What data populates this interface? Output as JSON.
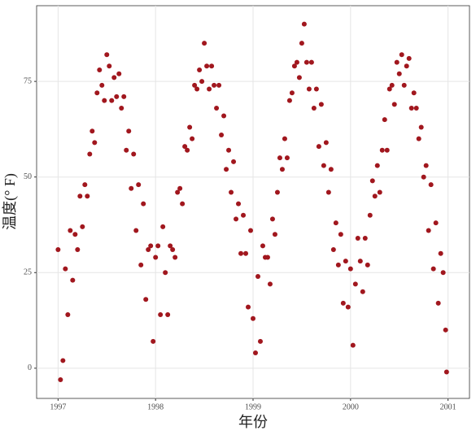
{
  "chart_data": {
    "type": "scatter",
    "x_label": "年份",
    "y_label": "温度(° F)",
    "color": "#a1171e",
    "grid": true,
    "xlim": [
      1996.78,
      2001.22
    ],
    "ylim": [
      -7.9,
      94.8
    ],
    "xticks": [
      1997,
      1998,
      1999,
      2000,
      2001
    ],
    "yticks": [
      0,
      25,
      50,
      75
    ],
    "x": [
      1997.0,
      1997.025,
      1997.05,
      1997.075,
      1997.1,
      1997.125,
      1997.15,
      1997.175,
      1997.2,
      1997.225,
      1997.25,
      1997.275,
      1997.3,
      1997.325,
      1997.35,
      1997.375,
      1997.4,
      1997.425,
      1997.45,
      1997.475,
      1997.5,
      1997.525,
      1997.55,
      1997.575,
      1997.6,
      1997.625,
      1997.65,
      1997.675,
      1997.7,
      1997.725,
      1997.75,
      1997.775,
      1997.8,
      1997.825,
      1997.85,
      1997.875,
      1997.9,
      1997.925,
      1997.95,
      1997.975,
      1998.0,
      1998.025,
      1998.05,
      1998.075,
      1998.1,
      1998.125,
      1998.15,
      1998.175,
      1998.2,
      1998.225,
      1998.25,
      1998.275,
      1998.3,
      1998.325,
      1998.35,
      1998.375,
      1998.4,
      1998.425,
      1998.45,
      1998.475,
      1998.5,
      1998.525,
      1998.55,
      1998.575,
      1998.6,
      1998.625,
      1998.65,
      1998.675,
      1998.7,
      1998.725,
      1998.75,
      1998.775,
      1998.8,
      1998.825,
      1998.85,
      1998.875,
      1998.9,
      1998.925,
      1998.95,
      1998.975,
      1999.0,
      1999.025,
      1999.05,
      1999.075,
      1999.1,
      1999.125,
      1999.15,
      1999.175,
      1999.2,
      1999.225,
      1999.25,
      1999.275,
      1999.3,
      1999.325,
      1999.35,
      1999.375,
      1999.4,
      1999.425,
      1999.45,
      1999.475,
      1999.5,
      1999.525,
      1999.55,
      1999.575,
      1999.6,
      1999.625,
      1999.65,
      1999.675,
      1999.7,
      1999.725,
      1999.75,
      1999.775,
      1999.8,
      1999.825,
      1999.85,
      1999.875,
      1999.9,
      1999.925,
      1999.95,
      1999.975,
      2000.0,
      2000.025,
      2000.05,
      2000.075,
      2000.1,
      2000.125,
      2000.15,
      2000.175,
      2000.2,
      2000.225,
      2000.25,
      2000.275,
      2000.3,
      2000.325,
      2000.35,
      2000.375,
      2000.4,
      2000.425,
      2000.45,
      2000.475,
      2000.5,
      2000.525,
      2000.55,
      2000.575,
      2000.6,
      2000.625,
      2000.65,
      2000.675,
      2000.7,
      2000.725,
      2000.75,
      2000.775,
      2000.8,
      2000.825,
      2000.85,
      2000.875,
      2000.9,
      2000.925,
      2000.95,
      2000.975,
      2000.985
    ],
    "values": [
      31,
      -3,
      2,
      26,
      14,
      36,
      23,
      35,
      31,
      45,
      37,
      48,
      45,
      56,
      62,
      59,
      72,
      78,
      74,
      70,
      82,
      79,
      70,
      76,
      71,
      77,
      68,
      71,
      57,
      62,
      47,
      56,
      36,
      48,
      27,
      43,
      18,
      31,
      32,
      7,
      29,
      32,
      14,
      37,
      25,
      14,
      32,
      31,
      29,
      46,
      47,
      43,
      58,
      57,
      63,
      60,
      74,
      73,
      78,
      75,
      85,
      79,
      73,
      79,
      74,
      68,
      74,
      61,
      66,
      52,
      57,
      46,
      54,
      39,
      43,
      30,
      40,
      30,
      16,
      36,
      13,
      4,
      24,
      7,
      32,
      29,
      29,
      22,
      39,
      35,
      46,
      55,
      52,
      60,
      55,
      70,
      72,
      79,
      80,
      76,
      85,
      90,
      80,
      73,
      80,
      68,
      73,
      58,
      69,
      53,
      59,
      46,
      52,
      31,
      38,
      27,
      35,
      17,
      28,
      16,
      26,
      6,
      22,
      34,
      28,
      20,
      34,
      27,
      40,
      49,
      45,
      53,
      46,
      57,
      65,
      57,
      73,
      74,
      69,
      80,
      77,
      82,
      74,
      79,
      81,
      68,
      72,
      68,
      60,
      63,
      50,
      53,
      36,
      48,
      26,
      38,
      17,
      30,
      25,
      10,
      -1
    ]
  }
}
